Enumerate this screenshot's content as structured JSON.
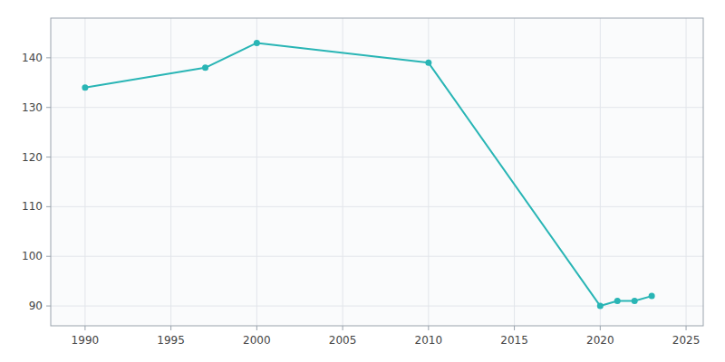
{
  "chart_data": {
    "type": "line",
    "x": [
      1990,
      1997,
      2000,
      2010,
      2020,
      2021,
      2022,
      2023
    ],
    "values": [
      134,
      138,
      143,
      139,
      90,
      91,
      91,
      92
    ],
    "color": "#29b5b5",
    "marker": "circle",
    "xlim": [
      1988,
      2026
    ],
    "ylim": [
      86,
      148
    ],
    "xticks": [
      1990,
      1995,
      2000,
      2005,
      2010,
      2015,
      2020,
      2025
    ],
    "yticks": [
      90,
      100,
      110,
      120,
      130,
      140
    ],
    "grid": true
  }
}
